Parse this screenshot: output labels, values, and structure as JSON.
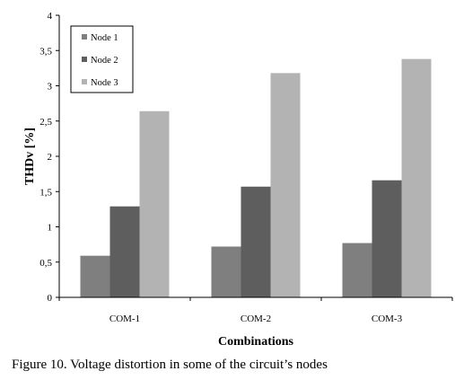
{
  "chart_data": {
    "type": "bar",
    "categories": [
      "COM-1",
      "COM-2",
      "COM-3"
    ],
    "series": [
      {
        "name": "Node 1",
        "color": "#7f7f7f",
        "values": [
          0.59,
          0.72,
          0.77
        ]
      },
      {
        "name": "Node 2",
        "color": "#5e5e5e",
        "values": [
          1.29,
          1.57,
          1.66
        ]
      },
      {
        "name": "Node 3",
        "color": "#b3b3b3",
        "values": [
          2.64,
          3.18,
          3.38
        ]
      }
    ],
    "title": "",
    "xlabel": "Combinations",
    "ylabel": "THDv [%]",
    "ylim": [
      0,
      4
    ],
    "yticks": [
      "0",
      "0,5",
      "1",
      "1,5",
      "2",
      "2,5",
      "3",
      "3,5",
      "4"
    ],
    "grid": false,
    "legend_position": "top-left"
  },
  "caption": "Figure 10. Voltage distortion in some of the circuit’s nodes"
}
